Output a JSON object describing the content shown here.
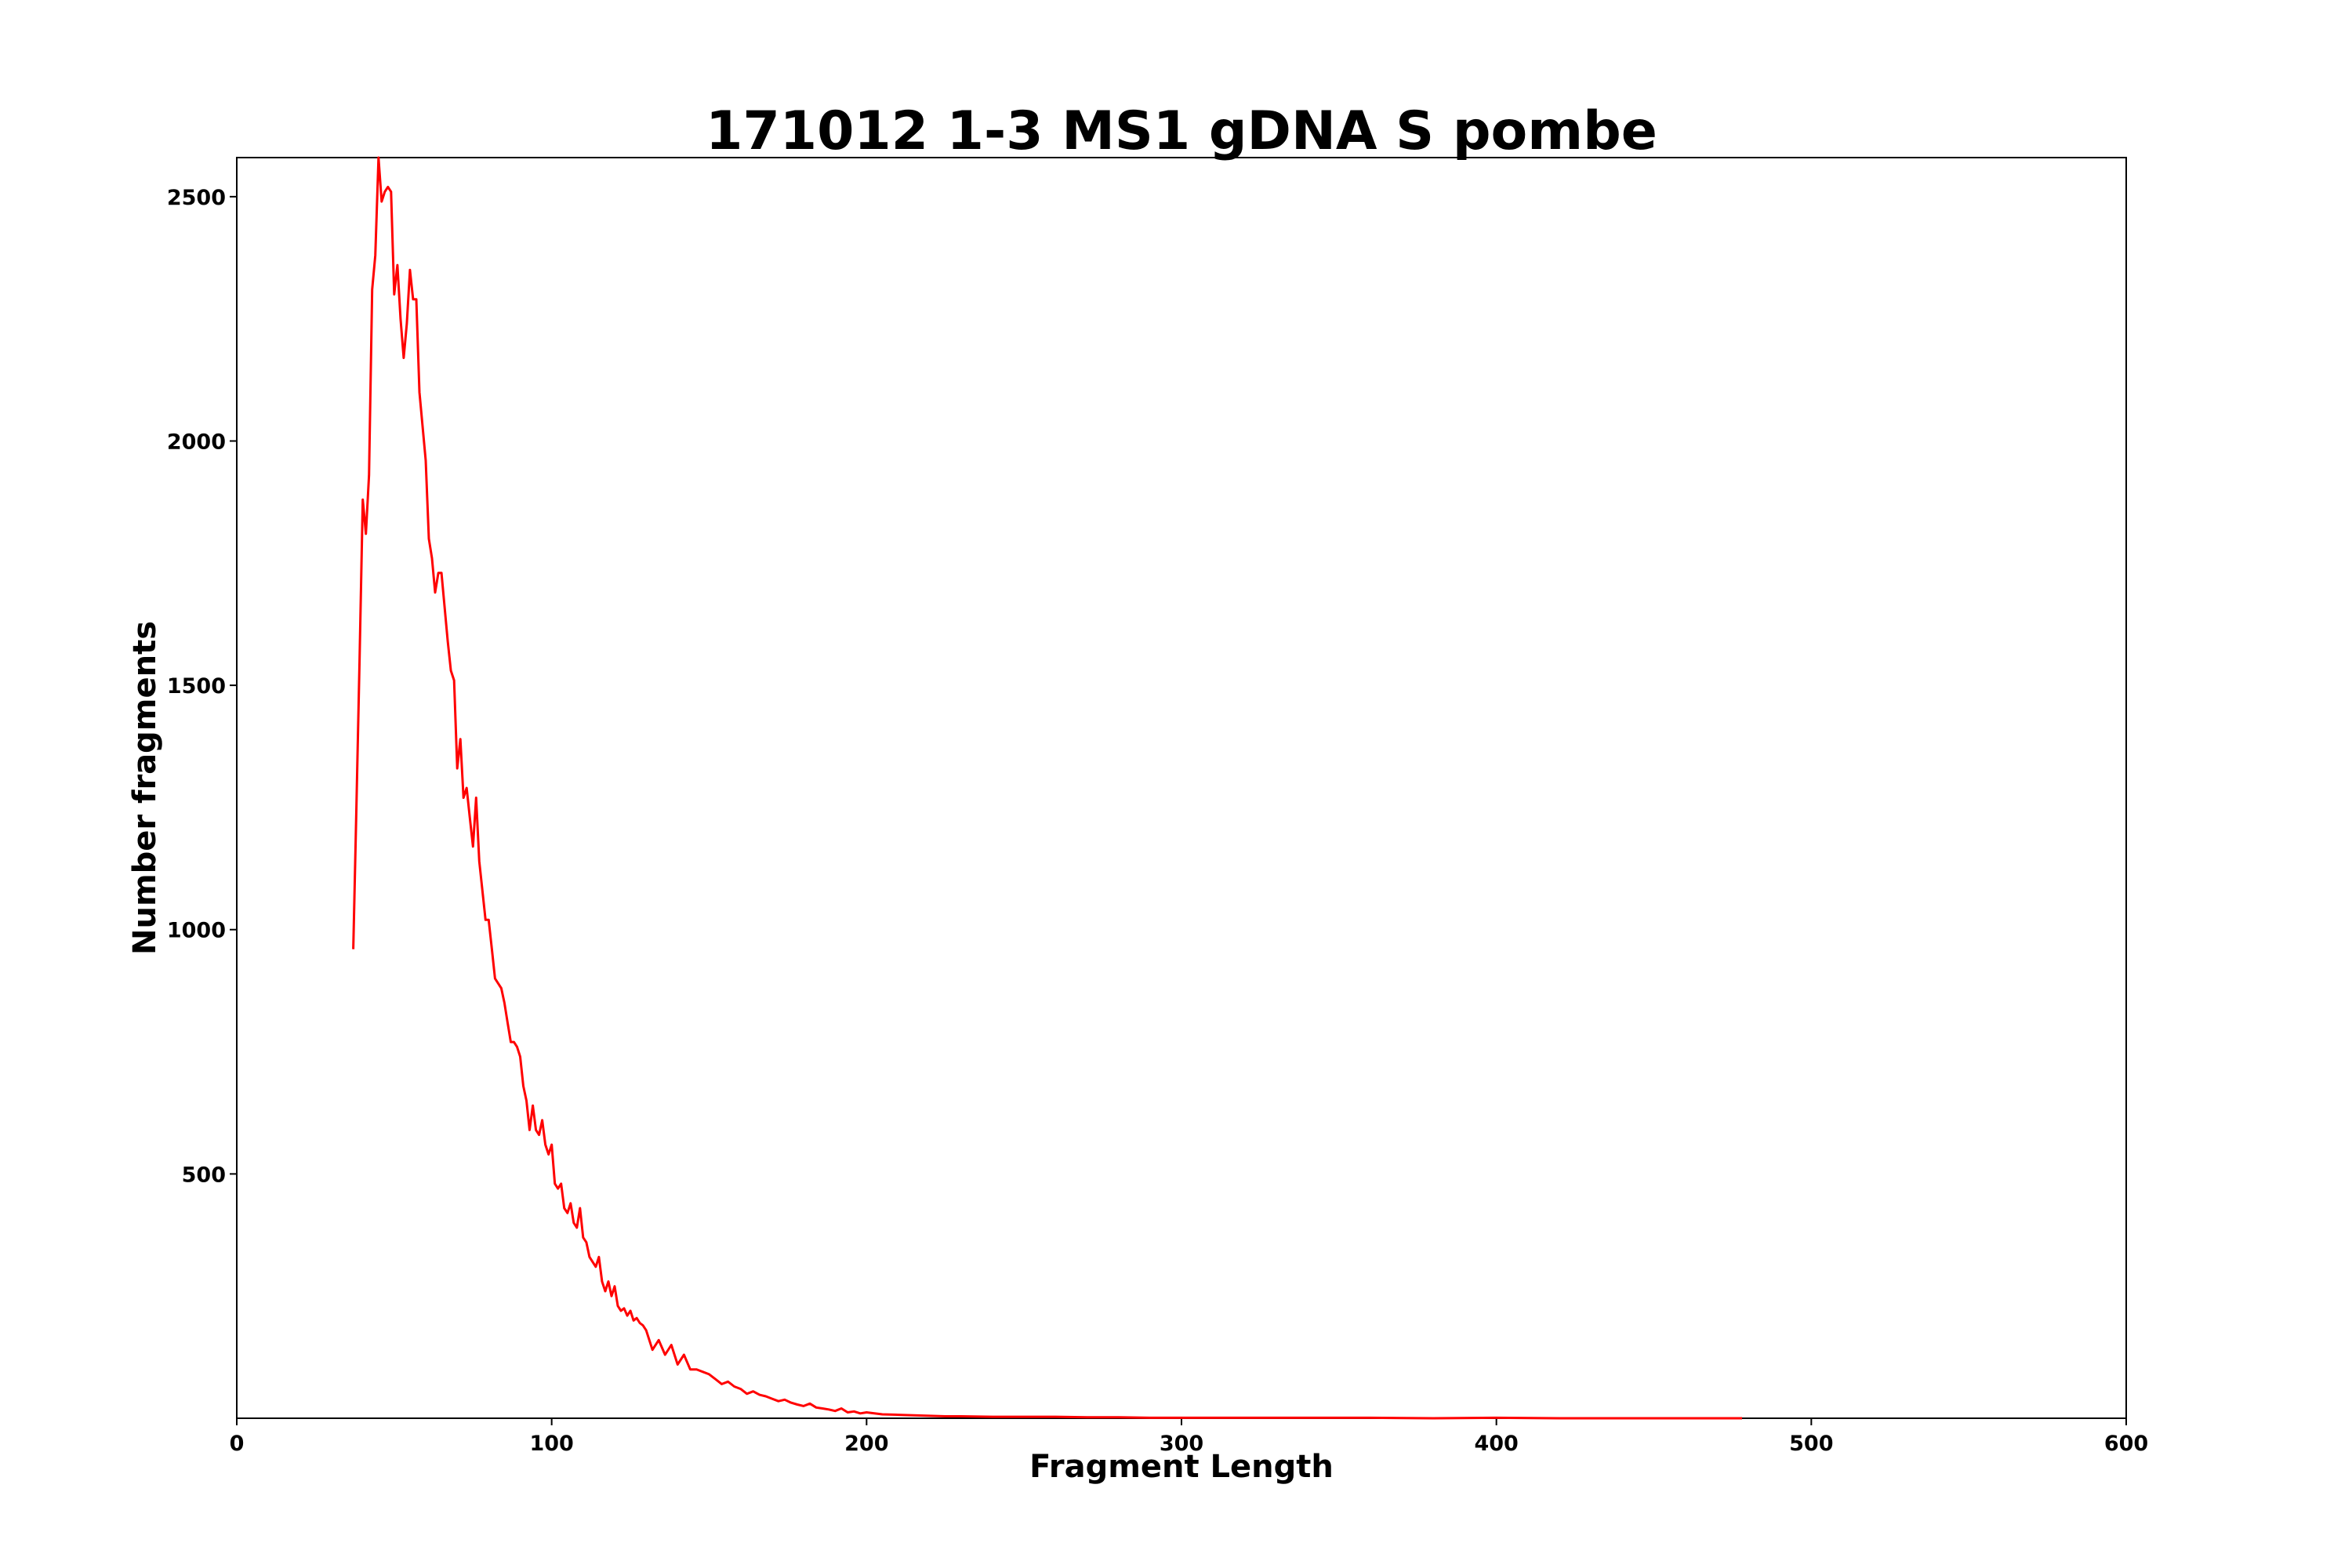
{
  "chart_data": {
    "type": "line",
    "title": "171012 1-3 MS1 gDNA S pombe",
    "xlabel": "Fragment Length",
    "ylabel": "Number fragments",
    "xlim": [
      0,
      600
    ],
    "ylim": [
      0,
      2580
    ],
    "x_ticks": [
      0,
      100,
      200,
      300,
      400,
      500,
      600
    ],
    "y_ticks": [
      500,
      1000,
      1500,
      2000,
      2500
    ],
    "grid": false,
    "legend": "none",
    "series": [
      {
        "color": "#ff0000",
        "x": [
          37,
          38,
          39,
          40,
          41,
          42,
          43,
          44,
          45,
          46,
          47,
          48,
          49,
          50,
          51,
          52,
          53,
          54,
          55,
          56,
          57,
          58,
          59,
          60,
          61,
          62,
          63,
          64,
          65,
          66,
          67,
          68,
          69,
          70,
          71,
          72,
          73,
          74,
          75,
          76,
          77,
          78,
          79,
          80,
          81,
          82,
          83,
          84,
          85,
          86,
          87,
          88,
          89,
          90,
          91,
          92,
          93,
          94,
          95,
          96,
          97,
          98,
          99,
          100,
          101,
          102,
          103,
          104,
          105,
          106,
          107,
          108,
          109,
          110,
          111,
          112,
          113,
          114,
          115,
          116,
          117,
          118,
          119,
          120,
          121,
          122,
          123,
          124,
          125,
          126,
          127,
          128,
          129,
          130,
          132,
          134,
          136,
          138,
          140,
          142,
          144,
          146,
          148,
          150,
          152,
          154,
          156,
          158,
          160,
          162,
          164,
          166,
          168,
          170,
          172,
          174,
          176,
          178,
          180,
          182,
          184,
          186,
          188,
          190,
          192,
          194,
          196,
          198,
          200,
          205,
          210,
          215,
          220,
          225,
          230,
          240,
          250,
          260,
          270,
          280,
          290,
          300,
          320,
          340,
          360,
          380,
          400,
          420,
          440,
          460,
          478
        ],
        "y": [
          960,
          1250,
          1550,
          1880,
          1810,
          1930,
          2310,
          2380,
          2580,
          2490,
          2510,
          2520,
          2510,
          2300,
          2360,
          2250,
          2170,
          2240,
          2350,
          2290,
          2290,
          2100,
          2030,
          1960,
          1800,
          1760,
          1690,
          1730,
          1730,
          1660,
          1590,
          1530,
          1510,
          1330,
          1390,
          1270,
          1290,
          1230,
          1170,
          1270,
          1140,
          1080,
          1020,
          1020,
          960,
          900,
          890,
          880,
          850,
          810,
          770,
          770,
          760,
          740,
          680,
          650,
          590,
          640,
          590,
          580,
          610,
          560,
          540,
          560,
          480,
          470,
          480,
          430,
          420,
          440,
          400,
          390,
          430,
          370,
          360,
          330,
          320,
          310,
          330,
          280,
          260,
          280,
          250,
          270,
          230,
          220,
          225,
          210,
          220,
          200,
          205,
          195,
          190,
          180,
          140,
          160,
          130,
          150,
          110,
          130,
          100,
          100,
          95,
          90,
          80,
          70,
          75,
          65,
          60,
          50,
          55,
          48,
          45,
          40,
          35,
          38,
          32,
          28,
          25,
          30,
          22,
          20,
          18,
          15,
          20,
          12,
          14,
          10,
          12,
          8,
          7,
          6,
          5,
          4,
          4,
          3,
          3,
          3,
          2,
          2,
          1,
          1,
          1,
          1,
          1,
          0,
          1,
          0,
          0,
          0,
          0
        ]
      }
    ]
  }
}
